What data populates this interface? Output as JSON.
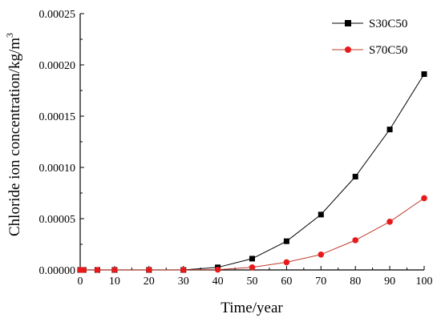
{
  "chart_data": {
    "type": "line",
    "title": "",
    "xlabel": "Time/year",
    "ylabel": "Chloride ion concentration/kg/m",
    "ylabel_superscript": "3",
    "xlim": [
      0,
      100
    ],
    "ylim": [
      0,
      0.00025
    ],
    "x_ticks": [
      "0",
      "10",
      "20",
      "30",
      "40",
      "50",
      "60",
      "70",
      "80",
      "90",
      "100"
    ],
    "y_ticks": [
      "0.00000",
      "0.00005",
      "0.00010",
      "0.00015",
      "0.00020",
      "0.00025"
    ],
    "grid": false,
    "legend_position": "top-right",
    "x": [
      0,
      1,
      5,
      10,
      20,
      30,
      40,
      50,
      60,
      70,
      80,
      90,
      100
    ],
    "series": [
      {
        "name": "S30C50",
        "color": "#000000",
        "line_color": "#000000",
        "marker": "square",
        "values": [
          0,
          0,
          0,
          0,
          0,
          0,
          2.5e-06,
          1.1e-05,
          2.8e-05,
          5.4e-05,
          9.1e-05,
          0.000137,
          0.000191
        ]
      },
      {
        "name": "S70C50",
        "color": "#e8191a",
        "line_color": "#c0392b",
        "marker": "circle",
        "values": [
          0,
          0,
          0,
          0,
          0,
          0,
          3e-07,
          2.5e-06,
          7.5e-06,
          1.5e-05,
          2.9e-05,
          4.7e-05,
          7e-05
        ]
      }
    ]
  }
}
